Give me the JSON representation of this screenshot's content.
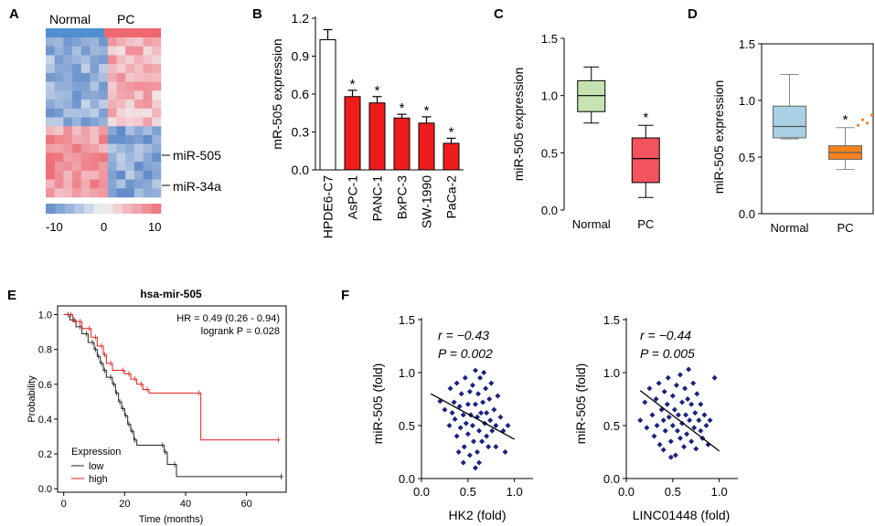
{
  "panels": {
    "A": "A",
    "B": "B",
    "C": "C",
    "D": "D",
    "E": "E",
    "F": "F"
  },
  "chart_data": [
    {
      "id": "A",
      "type": "heatmap",
      "groups": [
        "Normal",
        "PC"
      ],
      "row_labels": [
        "miR-505",
        "miR-34a"
      ],
      "colorbar_ticks": [
        "-10",
        "0",
        "10"
      ],
      "colorbar_range": [
        -10,
        10
      ],
      "colors": {
        "low": "#4f7fc4",
        "mid": "#f2f2f4",
        "high": "#ee5f6a",
        "normal_bar": "#4f8fd0",
        "pc_bar": "#ee6870"
      }
    },
    {
      "id": "B",
      "type": "bar",
      "ylabel": "mR-505 expression",
      "categories": [
        "HPDE6-C7",
        "AsPC-1",
        "PANC-1",
        "BxPC-3",
        "SW-1990",
        "PaCa-2"
      ],
      "values": [
        1.03,
        0.58,
        0.53,
        0.41,
        0.37,
        0.21
      ],
      "errors": [
        0.08,
        0.05,
        0.05,
        0.03,
        0.05,
        0.04
      ],
      "significance": [
        "",
        "*",
        "*",
        "*",
        "*",
        "*"
      ],
      "yticks": [
        "0.0",
        "0.3",
        "0.6",
        "0.9",
        "1.2"
      ],
      "ylim": [
        0,
        1.2
      ],
      "colors": {
        "control": "#ffffff",
        "treated": "#ee1c1c"
      }
    },
    {
      "id": "C",
      "type": "box",
      "ylabel": "miR-505 expression",
      "categories": [
        "Normal",
        "PC"
      ],
      "boxes": [
        {
          "min": 0.76,
          "q1": 0.86,
          "median": 1.0,
          "q3": 1.13,
          "max": 1.25,
          "color": "#c6e2b1"
        },
        {
          "min": 0.11,
          "q1": 0.24,
          "median": 0.45,
          "q3": 0.63,
          "max": 0.74,
          "color": "#f1545c"
        }
      ],
      "significance": [
        "",
        "*"
      ],
      "yticks": [
        "0.0",
        "0.5",
        "1.0",
        "1.5"
      ],
      "ylim": [
        0,
        1.5
      ]
    },
    {
      "id": "D",
      "type": "box",
      "ylabel": "miR-505 expression",
      "categories": [
        "Normal",
        "PC"
      ],
      "boxes": [
        {
          "min": 0.66,
          "q1": 0.67,
          "median": 0.77,
          "q3": 0.95,
          "max": 1.23,
          "color": "#a9d0e4",
          "outliers": []
        },
        {
          "min": 0.39,
          "q1": 0.48,
          "median": 0.54,
          "q3": 0.6,
          "max": 0.76,
          "color": "#f5821f",
          "outliers": [
            0.78,
            0.83,
            0.8,
            0.87,
            0.84
          ]
        }
      ],
      "significance": [
        "",
        "*"
      ],
      "yticks": [
        "0.0",
        "0.5",
        "1.0",
        "1.5"
      ],
      "ylim": [
        0,
        1.5
      ]
    },
    {
      "id": "E",
      "type": "line",
      "title": "hsa-mir-505",
      "xlabel": "Time (months)",
      "ylabel": "Probability",
      "xticks": [
        "0",
        "20",
        "40",
        "60"
      ],
      "yticks": [
        "0.0",
        "0.2",
        "0.4",
        "0.6",
        "0.8",
        "1.0"
      ],
      "xlim": [
        -2,
        73
      ],
      "ylim": [
        -0.02,
        1.05
      ],
      "annotation": [
        "HR = 0.49 (0.26 - 0.94)",
        "logrank P = 0.028"
      ],
      "legend_title": "Expression",
      "series": [
        {
          "name": "low",
          "color": "#222222",
          "steps": [
            [
              0,
              1.0
            ],
            [
              2,
              0.97
            ],
            [
              4,
              0.93
            ],
            [
              6,
              0.89
            ],
            [
              8,
              0.84
            ],
            [
              10,
              0.8
            ],
            [
              11,
              0.76
            ],
            [
              12,
              0.72
            ],
            [
              13,
              0.68
            ],
            [
              14,
              0.64
            ],
            [
              16,
              0.6
            ],
            [
              17,
              0.55
            ],
            [
              18,
              0.5
            ],
            [
              19,
              0.46
            ],
            [
              20,
              0.42
            ],
            [
              21,
              0.37
            ],
            [
              22,
              0.33
            ],
            [
              23,
              0.28
            ],
            [
              24,
              0.25
            ],
            [
              33,
              0.21
            ],
            [
              34,
              0.14
            ],
            [
              37,
              0.07
            ],
            [
              72,
              0.07
            ]
          ]
        },
        {
          "name": "high",
          "color": "#e41a1c",
          "steps": [
            [
              0,
              1.0
            ],
            [
              3,
              0.96
            ],
            [
              6,
              0.92
            ],
            [
              9,
              0.87
            ],
            [
              11,
              0.82
            ],
            [
              13,
              0.77
            ],
            [
              14,
              0.72
            ],
            [
              16,
              0.68
            ],
            [
              20,
              0.66
            ],
            [
              22,
              0.63
            ],
            [
              24,
              0.6
            ],
            [
              26,
              0.57
            ],
            [
              28,
              0.55
            ],
            [
              45,
              0.28
            ],
            [
              71,
              0.28
            ]
          ]
        }
      ]
    },
    {
      "id": "F1",
      "type": "scatter",
      "xlabel": "HK2 (fold)",
      "ylabel": "miR-505 (fold)",
      "stat_r": "r = −0.43",
      "stat_p": "P = 0.002",
      "xticks": [
        "0.0",
        "0.5",
        "1.0"
      ],
      "yticks": [
        "0.0",
        "0.5",
        "1.0",
        "1.5"
      ],
      "xlim": [
        0,
        1.2
      ],
      "ylim": [
        0,
        1.5
      ],
      "fit": [
        [
          0.1,
          0.8
        ],
        [
          1.0,
          0.37
        ]
      ],
      "points": [
        [
          0.2,
          0.73
        ],
        [
          0.25,
          0.65
        ],
        [
          0.3,
          0.5
        ],
        [
          0.31,
          0.85
        ],
        [
          0.33,
          0.62
        ],
        [
          0.35,
          0.72
        ],
        [
          0.36,
          0.56
        ],
        [
          0.38,
          0.4
        ],
        [
          0.38,
          0.9
        ],
        [
          0.4,
          0.25
        ],
        [
          0.41,
          0.68
        ],
        [
          0.42,
          0.48
        ],
        [
          0.43,
          0.8
        ],
        [
          0.45,
          0.6
        ],
        [
          0.46,
          0.3
        ],
        [
          0.47,
          0.95
        ],
        [
          0.48,
          0.52
        ],
        [
          0.5,
          0.7
        ],
        [
          0.5,
          0.42
        ],
        [
          0.52,
          0.22
        ],
        [
          0.52,
          0.82
        ],
        [
          0.53,
          0.6
        ],
        [
          0.55,
          0.5
        ],
        [
          0.55,
          0.88
        ],
        [
          0.56,
          0.35
        ],
        [
          0.58,
          0.7
        ],
        [
          0.58,
          1.02
        ],
        [
          0.6,
          0.58
        ],
        [
          0.6,
          0.25
        ],
        [
          0.61,
          0.8
        ],
        [
          0.62,
          0.45
        ],
        [
          0.63,
          0.95
        ],
        [
          0.64,
          0.62
        ],
        [
          0.65,
          0.35
        ],
        [
          0.66,
          0.72
        ],
        [
          0.67,
          1.0
        ],
        [
          0.68,
          0.52
        ],
        [
          0.69,
          0.85
        ],
        [
          0.7,
          0.4
        ],
        [
          0.7,
          0.62
        ],
        [
          0.72,
          0.3
        ],
        [
          0.73,
          0.75
        ],
        [
          0.74,
          0.55
        ],
        [
          0.75,
          0.9
        ],
        [
          0.76,
          0.45
        ],
        [
          0.78,
          0.65
        ],
        [
          0.8,
          0.5
        ],
        [
          0.8,
          0.3
        ],
        [
          0.82,
          0.78
        ],
        [
          0.85,
          0.58
        ],
        [
          0.88,
          0.45
        ],
        [
          0.9,
          0.25
        ],
        [
          0.93,
          0.5
        ],
        [
          0.62,
          0.15
        ],
        [
          0.45,
          0.15
        ],
        [
          0.58,
          0.1
        ]
      ]
    },
    {
      "id": "F2",
      "type": "scatter",
      "xlabel": "LINC01448 (fold)",
      "ylabel": "miR-505 (fold)",
      "stat_r": "r = −0.44",
      "stat_p": "P = 0.005",
      "xticks": [
        "0.0",
        "0.5",
        "1.0"
      ],
      "yticks": [
        "0.0",
        "0.5",
        "1.0",
        "1.5"
      ],
      "xlim": [
        0,
        1.2
      ],
      "ylim": [
        0,
        1.5
      ],
      "fit": [
        [
          0.15,
          0.83
        ],
        [
          1.0,
          0.26
        ]
      ],
      "points": [
        [
          0.15,
          0.55
        ],
        [
          0.2,
          0.72
        ],
        [
          0.22,
          0.48
        ],
        [
          0.25,
          0.85
        ],
        [
          0.28,
          0.6
        ],
        [
          0.3,
          0.4
        ],
        [
          0.32,
          0.75
        ],
        [
          0.33,
          0.5
        ],
        [
          0.35,
          0.9
        ],
        [
          0.36,
          0.32
        ],
        [
          0.38,
          0.65
        ],
        [
          0.4,
          0.55
        ],
        [
          0.41,
          0.82
        ],
        [
          0.42,
          0.45
        ],
        [
          0.44,
          0.7
        ],
        [
          0.45,
          0.95
        ],
        [
          0.46,
          0.58
        ],
        [
          0.48,
          0.35
        ],
        [
          0.5,
          0.78
        ],
        [
          0.5,
          0.5
        ],
        [
          0.52,
          0.65
        ],
        [
          0.53,
          0.22
        ],
        [
          0.54,
          0.88
        ],
        [
          0.55,
          0.45
        ],
        [
          0.56,
          0.6
        ],
        [
          0.58,
          0.98
        ],
        [
          0.58,
          0.38
        ],
        [
          0.6,
          0.72
        ],
        [
          0.6,
          0.52
        ],
        [
          0.62,
          0.3
        ],
        [
          0.63,
          0.85
        ],
        [
          0.64,
          0.6
        ],
        [
          0.65,
          0.42
        ],
        [
          0.66,
          0.75
        ],
        [
          0.67,
          1.03
        ],
        [
          0.68,
          0.55
        ],
        [
          0.7,
          0.35
        ],
        [
          0.7,
          0.7
        ],
        [
          0.72,
          0.9
        ],
        [
          0.73,
          0.48
        ],
        [
          0.74,
          0.62
        ],
        [
          0.75,
          0.28
        ],
        [
          0.76,
          0.8
        ],
        [
          0.78,
          0.55
        ],
        [
          0.8,
          0.45
        ],
        [
          0.8,
          0.7
        ],
        [
          0.82,
          0.38
        ],
        [
          0.84,
          0.6
        ],
        [
          0.86,
          0.5
        ],
        [
          0.88,
          0.32
        ],
        [
          0.9,
          0.55
        ],
        [
          0.95,
          0.95
        ],
        [
          0.48,
          0.2
        ],
        [
          0.4,
          0.27
        ]
      ]
    }
  ]
}
